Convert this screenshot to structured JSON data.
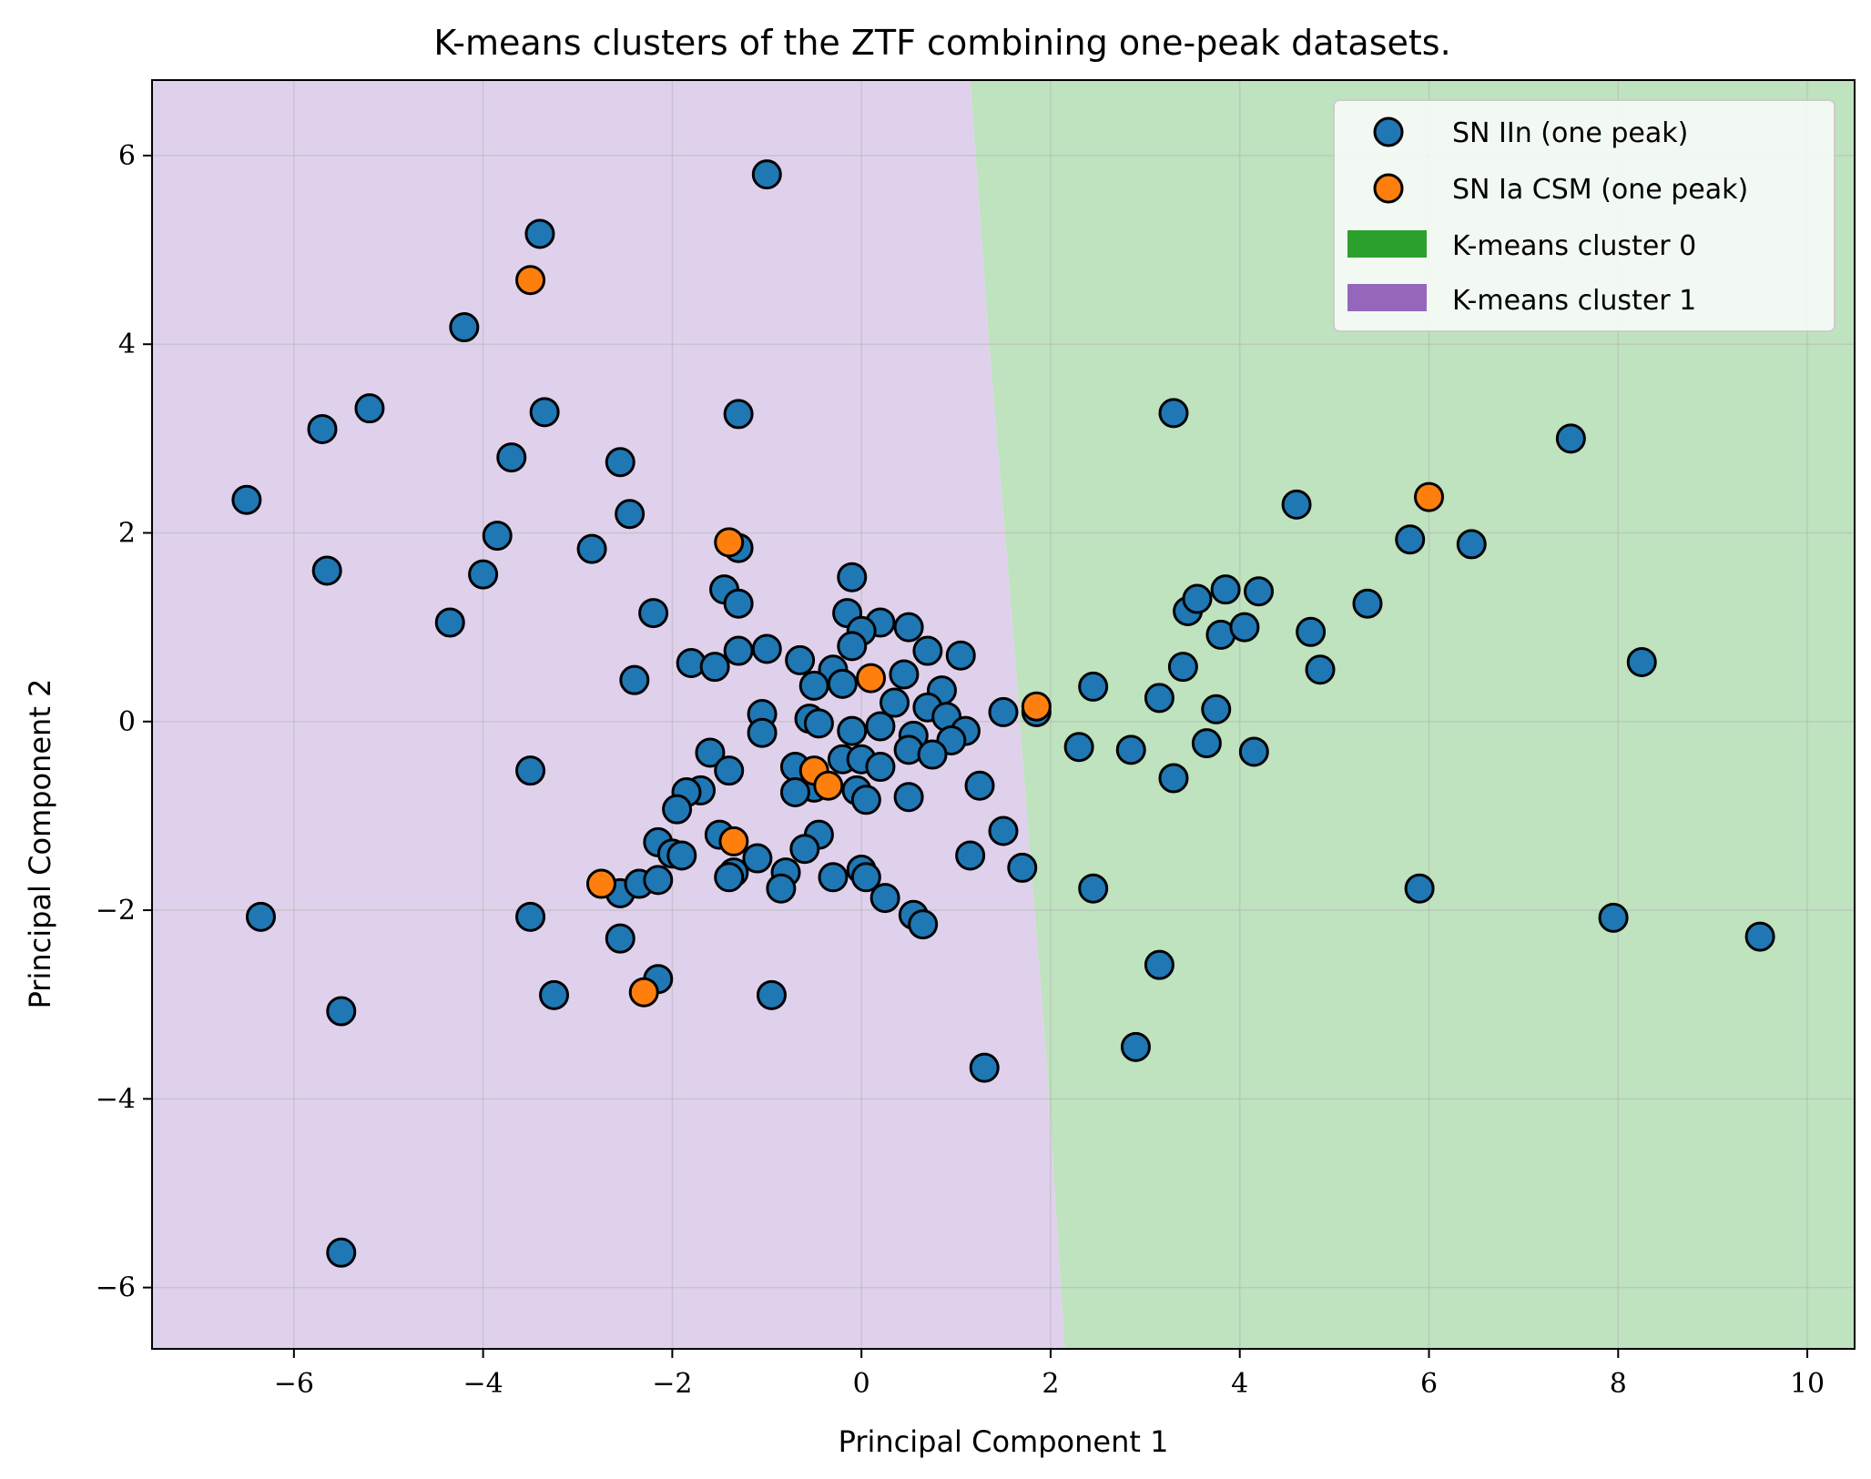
{
  "chart_data": {
    "type": "scatter",
    "title": "K-means clusters of the ZTF combining one-peak datasets.",
    "xlabel": "Principal Component 1",
    "ylabel": "Principal Component 2",
    "xlim": [
      -7.5,
      10.5
    ],
    "ylim": [
      -6.65,
      6.8
    ],
    "xticks": [
      -6,
      -4,
      -2,
      0,
      2,
      4,
      6,
      8,
      10
    ],
    "yticks": [
      -6,
      -4,
      -2,
      0,
      2,
      4,
      6
    ],
    "xtick_labels": [
      "−6",
      "−4",
      "−2",
      "0",
      "2",
      "4",
      "6",
      "8",
      "10"
    ],
    "ytick_labels": [
      "−6",
      "−4",
      "−2",
      "0",
      "2",
      "4",
      "6"
    ],
    "grid": true,
    "legend_position": "top-right",
    "regions": [
      {
        "name": "K-means cluster 0",
        "color": "#2ca02c",
        "fill": "#bfe2bf"
      },
      {
        "name": "K-means cluster 1",
        "color": "#9467bd",
        "fill": "#dfd1eb"
      }
    ],
    "boundary": [
      [
        1.15,
        6.8
      ],
      [
        1.35,
        4.0
      ],
      [
        1.6,
        1.0
      ],
      [
        1.75,
        -1.0
      ],
      [
        1.95,
        -3.5
      ],
      [
        2.15,
        -6.65
      ]
    ],
    "series": [
      {
        "name": "SN IIn (one peak)",
        "color": "#1f77b4",
        "points": [
          [
            -1.0,
            5.8
          ],
          [
            -3.4,
            5.17
          ],
          [
            -4.2,
            4.18
          ],
          [
            -5.2,
            3.32
          ],
          [
            -5.7,
            3.1
          ],
          [
            -3.35,
            3.28
          ],
          [
            -1.3,
            3.26
          ],
          [
            -3.7,
            2.8
          ],
          [
            -2.55,
            2.75
          ],
          [
            -6.5,
            2.35
          ],
          [
            -2.45,
            2.2
          ],
          [
            -3.85,
            1.97
          ],
          [
            -2.85,
            1.83
          ],
          [
            -1.3,
            1.84
          ],
          [
            -5.65,
            1.6
          ],
          [
            -4.0,
            1.56
          ],
          [
            -1.45,
            1.4
          ],
          [
            -1.3,
            1.25
          ],
          [
            -2.2,
            1.15
          ],
          [
            -4.35,
            1.05
          ],
          [
            -1.0,
            0.77
          ],
          [
            -1.3,
            0.75
          ],
          [
            -1.8,
            0.62
          ],
          [
            -1.55,
            0.58
          ],
          [
            -2.4,
            0.44
          ],
          [
            -0.65,
            0.65
          ],
          [
            -0.3,
            0.55
          ],
          [
            -0.5,
            0.38
          ],
          [
            -0.2,
            0.4
          ],
          [
            -0.1,
            1.53
          ],
          [
            -0.15,
            1.15
          ],
          [
            0.2,
            1.05
          ],
          [
            0.5,
            1.0
          ],
          [
            0.0,
            0.96
          ],
          [
            -0.1,
            0.8
          ],
          [
            0.7,
            0.75
          ],
          [
            1.05,
            0.7
          ],
          [
            0.45,
            0.5
          ],
          [
            0.85,
            0.33
          ],
          [
            0.7,
            0.15
          ],
          [
            0.35,
            0.2
          ],
          [
            0.9,
            0.05
          ],
          [
            -1.05,
            0.08
          ],
          [
            -1.05,
            -0.12
          ],
          [
            -0.55,
            0.03
          ],
          [
            -0.45,
            -0.02
          ],
          [
            -0.1,
            -0.1
          ],
          [
            0.2,
            -0.05
          ],
          [
            0.55,
            -0.15
          ],
          [
            1.1,
            -0.1
          ],
          [
            0.95,
            -0.2
          ],
          [
            0.5,
            -0.3
          ],
          [
            0.75,
            -0.35
          ],
          [
            -1.6,
            -0.33
          ],
          [
            -1.4,
            -0.52
          ],
          [
            -3.5,
            -0.52
          ],
          [
            -0.7,
            -0.48
          ],
          [
            -0.5,
            -0.7
          ],
          [
            -0.2,
            -0.4
          ],
          [
            0.0,
            -0.4
          ],
          [
            0.2,
            -0.48
          ],
          [
            -0.7,
            -0.75
          ],
          [
            -1.7,
            -0.73
          ],
          [
            -1.85,
            -0.75
          ],
          [
            -1.95,
            -0.93
          ],
          [
            -0.05,
            -0.73
          ],
          [
            0.05,
            -0.83
          ],
          [
            0.5,
            -0.8
          ],
          [
            1.25,
            -0.68
          ],
          [
            -2.15,
            -1.28
          ],
          [
            -1.5,
            -1.2
          ],
          [
            -0.45,
            -1.2
          ],
          [
            -0.6,
            -1.35
          ],
          [
            -2.0,
            -1.4
          ],
          [
            -1.9,
            -1.42
          ],
          [
            -1.1,
            -1.45
          ],
          [
            -0.8,
            -1.6
          ],
          [
            -1.35,
            -1.6
          ],
          [
            -1.4,
            -1.65
          ],
          [
            -0.85,
            -1.77
          ],
          [
            -2.55,
            -1.82
          ],
          [
            -2.35,
            -1.72
          ],
          [
            -2.15,
            -1.68
          ],
          [
            -0.3,
            -1.65
          ],
          [
            0.0,
            -1.57
          ],
          [
            0.05,
            -1.65
          ],
          [
            0.25,
            -1.87
          ],
          [
            0.55,
            -2.05
          ],
          [
            0.65,
            -2.15
          ],
          [
            -3.5,
            -2.07
          ],
          [
            -6.35,
            -2.07
          ],
          [
            -2.55,
            -2.3
          ],
          [
            -2.15,
            -2.73
          ],
          [
            -3.25,
            -2.9
          ],
          [
            -0.95,
            -2.9
          ],
          [
            -5.5,
            -3.07
          ],
          [
            -5.5,
            -5.63
          ],
          [
            1.15,
            -1.42
          ],
          [
            1.5,
            -1.16
          ],
          [
            1.7,
            -1.55
          ],
          [
            1.5,
            0.1
          ],
          [
            1.85,
            0.1
          ],
          [
            1.3,
            -3.67
          ],
          [
            3.3,
            3.27
          ],
          [
            2.45,
            0.37
          ],
          [
            2.3,
            -0.27
          ],
          [
            2.85,
            -0.3
          ],
          [
            3.15,
            0.25
          ],
          [
            3.4,
            0.58
          ],
          [
            3.45,
            1.17
          ],
          [
            3.55,
            1.3
          ],
          [
            3.85,
            1.4
          ],
          [
            4.2,
            1.38
          ],
          [
            3.8,
            0.92
          ],
          [
            4.05,
            1.0
          ],
          [
            3.75,
            0.13
          ],
          [
            3.65,
            -0.23
          ],
          [
            3.3,
            -0.6
          ],
          [
            4.15,
            -0.32
          ],
          [
            2.45,
            -1.77
          ],
          [
            3.15,
            -2.58
          ],
          [
            2.9,
            -3.45
          ],
          [
            4.6,
            2.3
          ],
          [
            4.75,
            0.95
          ],
          [
            4.85,
            0.55
          ],
          [
            5.35,
            1.25
          ],
          [
            5.8,
            1.93
          ],
          [
            6.45,
            1.88
          ],
          [
            7.5,
            3.0
          ],
          [
            8.25,
            0.63
          ],
          [
            5.9,
            -1.77
          ],
          [
            7.95,
            -2.08
          ],
          [
            9.5,
            -2.28
          ]
        ]
      },
      {
        "name": "SN Ia CSM (one peak)",
        "color": "#ff7f0e",
        "points": [
          [
            -3.5,
            4.68
          ],
          [
            -1.4,
            1.9
          ],
          [
            0.1,
            0.46
          ],
          [
            -0.5,
            -0.52
          ],
          [
            -0.35,
            -0.68
          ],
          [
            -1.35,
            -1.27
          ],
          [
            -2.75,
            -1.72
          ],
          [
            -2.3,
            -2.87
          ],
          [
            1.85,
            0.16
          ],
          [
            6.0,
            2.38
          ]
        ]
      }
    ]
  }
}
